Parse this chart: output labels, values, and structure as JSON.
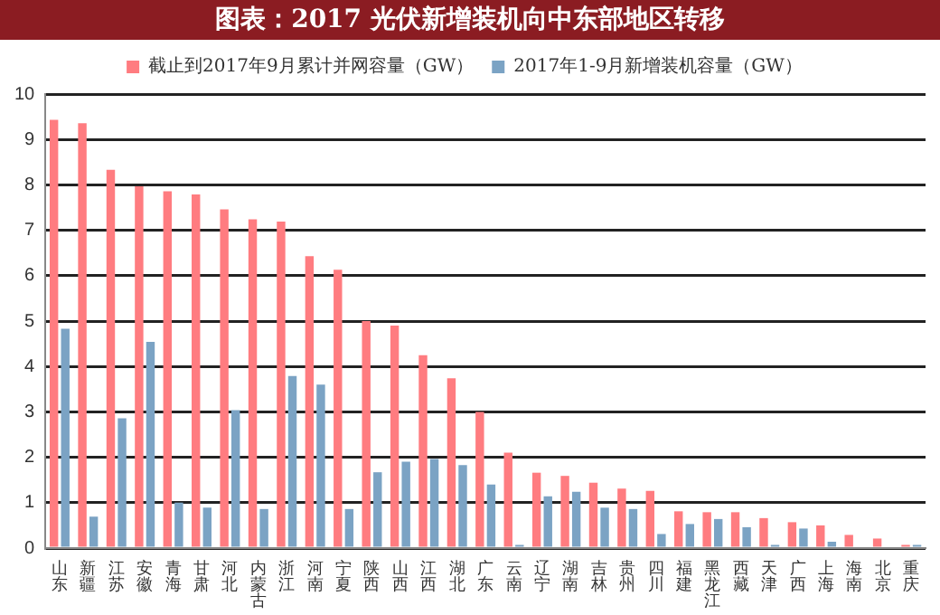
{
  "chart_data": {
    "type": "bar",
    "title": "图表：2017 光伏新增装机向中东部地区转移",
    "categories": [
      "山东",
      "新疆",
      "江苏",
      "安徽",
      "青海",
      "甘肃",
      "河北",
      "内蒙古",
      "浙江",
      "河南",
      "宁夏",
      "陕西",
      "山西",
      "江西",
      "湖北",
      "广东",
      "云南",
      "辽宁",
      "湖南",
      "吉林",
      "贵州",
      "四川",
      "福建",
      "黑龙江",
      "西藏",
      "天津",
      "广西",
      "上海",
      "海南",
      "北京",
      "重庆"
    ],
    "series": [
      {
        "name": "截止到2017年9月累计并网容量（GW）",
        "color": "#ff7c80",
        "values": [
          9.43,
          9.36,
          8.33,
          7.97,
          7.86,
          7.79,
          7.46,
          7.24,
          7.19,
          6.43,
          6.13,
          5.0,
          4.9,
          4.25,
          3.74,
          3.0,
          2.1,
          1.66,
          1.59,
          1.44,
          1.31,
          1.26,
          0.81,
          0.79,
          0.79,
          0.66,
          0.57,
          0.5,
          0.29,
          0.21,
          0.07
        ]
      },
      {
        "name": "2017年1-9月新增装机容量（GW）",
        "color": "#7ba3c4",
        "values": [
          4.83,
          0.69,
          2.86,
          4.54,
          1.0,
          0.89,
          3.04,
          0.86,
          3.79,
          3.6,
          0.86,
          1.67,
          1.9,
          1.96,
          1.83,
          1.4,
          0.07,
          1.14,
          1.24,
          0.89,
          0.86,
          0.31,
          0.53,
          0.64,
          0.46,
          0.07,
          0.43,
          0.14,
          null,
          null,
          0.07
        ]
      }
    ],
    "ylim": [
      0,
      10
    ],
    "yticks": [
      0,
      1,
      2,
      3,
      4,
      5,
      6,
      7,
      8,
      9,
      10
    ],
    "grid": "y",
    "legend": "top"
  }
}
